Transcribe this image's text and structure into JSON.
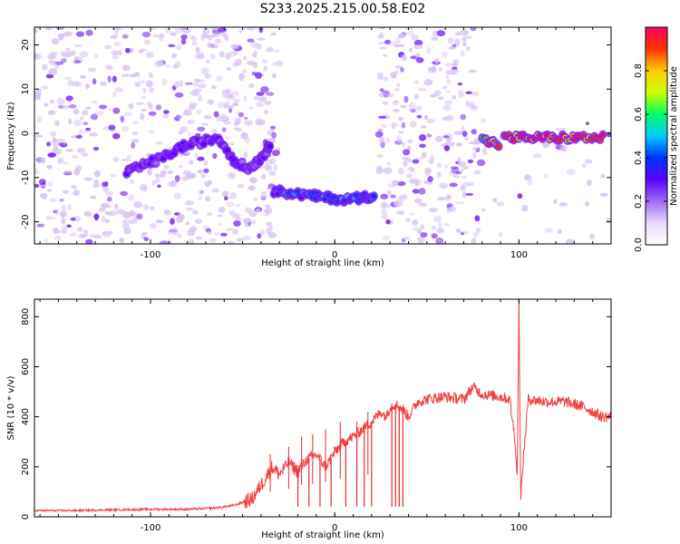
{
  "figure_title": "S233.2025.215.00.58.E02",
  "colors": {
    "snr_line": "#ee2a2a",
    "spectrogram_low": "#d9c3f5",
    "spectrogram_mid": "#7a22ee",
    "colormap": [
      "#ffffff",
      "#ead9fb",
      "#a06af5",
      "#5a00ff",
      "#0033ff",
      "#00ccff",
      "#00ff66",
      "#ccff00",
      "#ffcc00",
      "#ff3300",
      "#ff0066"
    ]
  },
  "chart_data": [
    {
      "type": "heatmap",
      "title": "S233.2025.215.00.58.E02",
      "xlabel": "Height of straight line (km)",
      "ylabel": "Frequency (Hz)",
      "xlim": [
        -163,
        150
      ],
      "ylim": [
        -25,
        24
      ],
      "xticks": [
        -100,
        0,
        100
      ],
      "xtick_labels": [
        "-100",
        "0",
        "100"
      ],
      "yticks": [
        20,
        10,
        0,
        -10,
        -20
      ],
      "ytick_labels": [
        "20",
        "10",
        "0",
        "-10",
        "-20"
      ],
      "colorbar": {
        "label": "Normalized spectral amplitude",
        "range": [
          0,
          1
        ],
        "ticks": [
          0.0,
          0.2,
          0.4,
          0.6,
          0.8
        ],
        "tick_labels": [
          "0.0",
          "0.2",
          "0.4",
          "0.6",
          "0.8"
        ]
      },
      "noise_regions": [
        {
          "x": [
            -163,
            -30
          ],
          "y": [
            -25,
            24
          ],
          "density": 0.55
        },
        {
          "x": [
            24,
            78
          ],
          "y": [
            -25,
            24
          ],
          "density": 0.6
        },
        {
          "x": [
            78,
            150
          ],
          "y": [
            -25,
            3
          ],
          "density": 0.12
        }
      ],
      "ridges": [
        {
          "x": [
            -113,
            -103,
            -93,
            -83,
            -73,
            -63,
            -55,
            -47,
            -41,
            -37,
            -35
          ],
          "y": [
            -9,
            -7,
            -5.5,
            -3,
            -2,
            -1,
            -6,
            -8,
            -6,
            -4,
            -2
          ],
          "amplitude": 0.3
        },
        {
          "x": [
            -33,
            -25,
            -15,
            -5,
            5,
            15,
            22
          ],
          "y": [
            -13,
            -13.5,
            -14,
            -14.5,
            -15,
            -14.5,
            -14
          ],
          "amplitude": 0.45
        },
        {
          "x": [
            80,
            90
          ],
          "y": [
            -1.5,
            -2.5
          ],
          "amplitude": 0.85
        },
        {
          "x": [
            92,
            105,
            118,
            132,
            147
          ],
          "y": [
            -1,
            -1,
            -1,
            -1,
            -1
          ],
          "amplitude": 0.95
        }
      ]
    },
    {
      "type": "line",
      "xlabel": "Height of straight line (km)",
      "ylabel": "SNR (10 * v/v)",
      "xlim": [
        -163,
        150
      ],
      "ylim": [
        0,
        870
      ],
      "xticks": [
        -100,
        0,
        100
      ],
      "xtick_labels": [
        "-100",
        "0",
        "100"
      ],
      "yticks": [
        0,
        200,
        400,
        600,
        800
      ],
      "ytick_labels": [
        "0",
        "200",
        "400",
        "600",
        "800"
      ],
      "series": [
        {
          "x": [
            -163,
            -140,
            -120,
            -100,
            -80,
            -65,
            -55,
            -45,
            -38,
            -34,
            -30,
            -25,
            -20,
            -15,
            -10,
            -5,
            0,
            5,
            10,
            15,
            20,
            25,
            28,
            30,
            33,
            37,
            40,
            45,
            50,
            60,
            70,
            75,
            80,
            90,
            95,
            98,
            99,
            100,
            101,
            102,
            105,
            115,
            125,
            135,
            140,
            145,
            150
          ],
          "y": [
            25,
            25,
            28,
            30,
            30,
            35,
            45,
            70,
            150,
            200,
            170,
            220,
            180,
            230,
            250,
            200,
            260,
            300,
            320,
            350,
            380,
            420,
            400,
            440,
            450,
            430,
            400,
            460,
            470,
            480,
            470,
            520,
            490,
            480,
            470,
            300,
            150,
            860,
            60,
            200,
            470,
            460,
            460,
            440,
            420,
            400,
            400
          ]
        }
      ],
      "spikes": [
        {
          "x": -35,
          "y": 250
        },
        {
          "x": -25,
          "y": 280
        },
        {
          "x": -18,
          "y": 320
        },
        {
          "x": -12,
          "y": 330
        },
        {
          "x": -5,
          "y": 350
        },
        {
          "x": 3,
          "y": 380
        },
        {
          "x": 12,
          "y": 380
        },
        {
          "x": 18,
          "y": 420
        }
      ],
      "dips": [
        {
          "x": -20,
          "y": 40
        },
        {
          "x": -14,
          "y": 40
        },
        {
          "x": -8,
          "y": 40
        },
        {
          "x": -2,
          "y": 40
        },
        {
          "x": 6,
          "y": 40
        },
        {
          "x": 12,
          "y": 40
        },
        {
          "x": 16,
          "y": 40
        },
        {
          "x": 20,
          "y": 40
        },
        {
          "x": 31,
          "y": 40
        },
        {
          "x": 33,
          "y": 40
        },
        {
          "x": 35,
          "y": 40
        },
        {
          "x": 37,
          "y": 40
        }
      ]
    }
  ]
}
